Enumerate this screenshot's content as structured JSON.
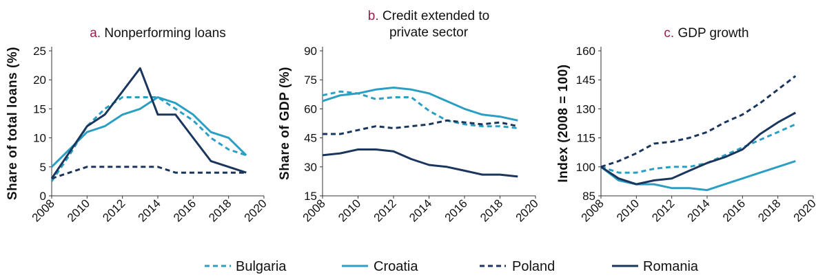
{
  "colors": {
    "Bulgaria": "#2b9fc3",
    "Croatia": "#2b9fc3",
    "Poland": "#1a365d",
    "Romania": "#1a365d",
    "title_letter": "#9b1d4c",
    "axis": "#333333"
  },
  "legend": {
    "position": "bottom-center",
    "items": [
      {
        "name": "Bulgaria",
        "dash": "dashed"
      },
      {
        "name": "Croatia",
        "dash": "solid"
      },
      {
        "name": "Poland",
        "dash": "dashed"
      },
      {
        "name": "Romania",
        "dash": "solid"
      }
    ]
  },
  "chart_data": [
    {
      "type": "line",
      "title_letter": "a.",
      "title": [
        "Nonperforming loans"
      ],
      "ylabel": "Share of total loans (%)",
      "xlabel": "",
      "xlim": [
        2008,
        2020
      ],
      "ylim": [
        0,
        25
      ],
      "xticks": [
        "2008",
        "2010",
        "2012",
        "2014",
        "2016",
        "2018",
        "2020"
      ],
      "yticks": [
        "0",
        "5",
        "10",
        "15",
        "20",
        "25"
      ],
      "grid": false,
      "series": [
        {
          "name": "Bulgaria",
          "x": [
            2008,
            2009,
            2010,
            2011,
            2012,
            2013,
            2014,
            2015,
            2016,
            2017,
            2018,
            2019
          ],
          "y": [
            2.5,
            7,
            12,
            15,
            17,
            17,
            17,
            15,
            13,
            10,
            8,
            7
          ]
        },
        {
          "name": "Croatia",
          "x": [
            2008,
            2009,
            2010,
            2011,
            2012,
            2013,
            2014,
            2015,
            2016,
            2017,
            2018,
            2019
          ],
          "y": [
            5,
            8,
            11,
            12,
            14,
            15,
            17,
            16,
            14,
            11,
            10,
            7
          ]
        },
        {
          "name": "Poland",
          "x": [
            2008,
            2009,
            2010,
            2011,
            2012,
            2013,
            2014,
            2015,
            2016,
            2017,
            2018,
            2019
          ],
          "y": [
            3,
            4,
            5,
            5,
            5,
            5,
            5,
            4,
            4,
            4,
            4,
            4
          ]
        },
        {
          "name": "Romania",
          "x": [
            2008,
            2009,
            2010,
            2011,
            2012,
            2013,
            2014,
            2015,
            2016,
            2017,
            2018,
            2019
          ],
          "y": [
            3,
            7.5,
            12,
            14,
            18,
            22,
            14,
            14,
            10,
            6,
            5,
            4
          ]
        }
      ]
    },
    {
      "type": "line",
      "title_letter": "b.",
      "title": [
        "Credit extended to",
        "private sector"
      ],
      "ylabel": "Share of GDP (%)",
      "xlabel": "",
      "xlim": [
        2008,
        2020
      ],
      "ylim": [
        15,
        90
      ],
      "xticks": [
        "2008",
        "2010",
        "2012",
        "2014",
        "2016",
        "2018",
        "2020"
      ],
      "yticks": [
        "15",
        "30",
        "45",
        "60",
        "75",
        "90"
      ],
      "grid": false,
      "series": [
        {
          "name": "Bulgaria",
          "x": [
            2008,
            2009,
            2010,
            2011,
            2012,
            2013,
            2014,
            2015,
            2016,
            2017,
            2018,
            2019
          ],
          "y": [
            67,
            69,
            68,
            65,
            66,
            66,
            59,
            54,
            52,
            51,
            51,
            50
          ]
        },
        {
          "name": "Croatia",
          "x": [
            2008,
            2009,
            2010,
            2011,
            2012,
            2013,
            2014,
            2015,
            2016,
            2017,
            2018,
            2019
          ],
          "y": [
            64,
            67,
            68,
            70,
            71,
            70,
            68,
            64,
            60,
            57,
            56,
            54
          ]
        },
        {
          "name": "Poland",
          "x": [
            2008,
            2009,
            2010,
            2011,
            2012,
            2013,
            2014,
            2015,
            2016,
            2017,
            2018,
            2019
          ],
          "y": [
            47,
            47,
            49,
            51,
            50,
            51,
            52,
            54,
            53,
            52,
            53,
            51
          ]
        },
        {
          "name": "Romania",
          "x": [
            2008,
            2009,
            2010,
            2011,
            2012,
            2013,
            2014,
            2015,
            2016,
            2017,
            2018,
            2019
          ],
          "y": [
            36,
            37,
            39,
            39,
            38,
            34,
            31,
            30,
            28,
            26,
            26,
            25
          ]
        }
      ]
    },
    {
      "type": "line",
      "title_letter": "c.",
      "title": [
        "GDP growth"
      ],
      "ylabel": "Index (2008 = 100)",
      "xlabel": "",
      "xlim": [
        2008,
        2020
      ],
      "ylim": [
        85,
        160
      ],
      "xticks": [
        "2008",
        "2010",
        "2012",
        "2014",
        "2016",
        "2018",
        "2020"
      ],
      "yticks": [
        "85",
        "100",
        "115",
        "130",
        "145",
        "160"
      ],
      "grid": false,
      "series": [
        {
          "name": "Bulgaria",
          "x": [
            2008,
            2009,
            2010,
            2011,
            2012,
            2013,
            2014,
            2015,
            2016,
            2017,
            2018,
            2019
          ],
          "y": [
            100,
            97,
            97,
            99,
            100,
            100,
            102,
            106,
            110,
            114,
            118,
            122
          ]
        },
        {
          "name": "Croatia",
          "x": [
            2008,
            2009,
            2010,
            2011,
            2012,
            2013,
            2014,
            2015,
            2016,
            2017,
            2018,
            2019
          ],
          "y": [
            100,
            93,
            91,
            91,
            89,
            89,
            88,
            91,
            94,
            97,
            100,
            103
          ]
        },
        {
          "name": "Poland",
          "x": [
            2008,
            2009,
            2010,
            2011,
            2012,
            2013,
            2014,
            2015,
            2016,
            2017,
            2018,
            2019
          ],
          "y": [
            100,
            103,
            107,
            112,
            113,
            115,
            118,
            123,
            127,
            133,
            140,
            147
          ]
        },
        {
          "name": "Romania",
          "x": [
            2008,
            2009,
            2010,
            2011,
            2012,
            2013,
            2014,
            2015,
            2016,
            2017,
            2018,
            2019
          ],
          "y": [
            100,
            94,
            91,
            93,
            94,
            98,
            102,
            105,
            109,
            117,
            123,
            128
          ]
        }
      ]
    }
  ]
}
